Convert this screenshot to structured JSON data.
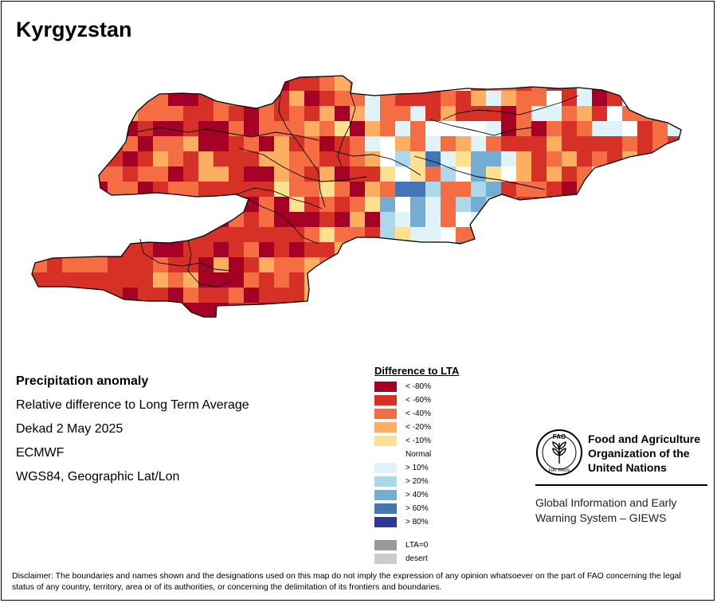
{
  "title": "Kyrgyzstan",
  "info": {
    "heading": "Precipitation anomaly",
    "line1": "Relative difference to Long Term Average",
    "line2": "Dekad 2 May 2025",
    "line3": "ECMWF",
    "line4": "WGS84, Geographic Lat/Lon"
  },
  "legend": {
    "title": "Difference to LTA",
    "items": [
      {
        "label": "< -80%",
        "color": "#a50026"
      },
      {
        "label": "< -60%",
        "color": "#d73027"
      },
      {
        "label": "< -40%",
        "color": "#f46d43"
      },
      {
        "label": "< -20%",
        "color": "#fdae61"
      },
      {
        "label": "< -10%",
        "color": "#fee090"
      },
      {
        "label": "Normal",
        "color": ""
      },
      {
        "label": "> 10%",
        "color": "#e0f3f8"
      },
      {
        "label": "> 20%",
        "color": "#abd9e9"
      },
      {
        "label": "> 40%",
        "color": "#74add1"
      },
      {
        "label": "> 60%",
        "color": "#4575b4"
      },
      {
        "label": "> 80%",
        "color": "#313695"
      }
    ],
    "extra": [
      {
        "label": "LTA=0",
        "color": "#999999"
      },
      {
        "label": "desert",
        "color": "#cccccc"
      }
    ]
  },
  "fao": {
    "emblem_text": "FAO",
    "emblem_motto": "FIAT PANIS",
    "name": "Food and Agriculture\nOrganization of the\nUnited Nations",
    "system": "Global Information and Early\nWarning System – GIEWS"
  },
  "disclaimer": "Disclaimer: The boundaries and names shown and the designations used on this map do not imply the expression of any opinion whatsoever on the part of FAO concerning the legal status of any country, territory, area or of its authorities, or concerning the delimitation of its frontiers and boundaries."
}
